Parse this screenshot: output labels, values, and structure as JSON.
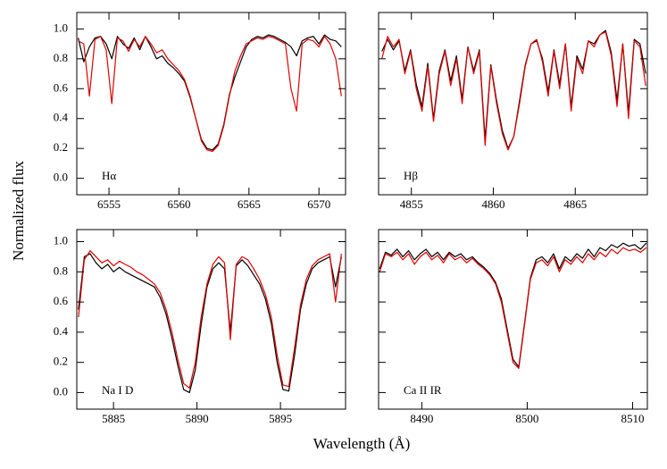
{
  "labels": {
    "x": "Wavelength (Å)",
    "y": "Normalized flux"
  },
  "chart_data": [
    {
      "type": "line",
      "label": "Hα",
      "x": [
        6552.8,
        6553.2,
        6553.6,
        6554.0,
        6554.4,
        6554.8,
        6555.2,
        6555.6,
        6556.0,
        6556.4,
        6556.8,
        6557.2,
        6557.6,
        6558.0,
        6558.4,
        6558.8,
        6559.2,
        6559.6,
        6560.0,
        6560.4,
        6560.8,
        6561.2,
        6561.6,
        6562.0,
        6562.4,
        6562.8,
        6563.2,
        6563.6,
        6564.0,
        6564.4,
        6564.8,
        6565.2,
        6565.6,
        6566.0,
        6566.4,
        6566.8,
        6567.2,
        6567.6,
        6568.0,
        6568.4,
        6568.8,
        6569.2,
        6569.6,
        6570.0,
        6570.4,
        6570.8,
        6571.2,
        6571.6
      ],
      "series": [
        {
          "color": "#000000",
          "values": [
            0.94,
            0.78,
            0.88,
            0.94,
            0.95,
            0.9,
            0.8,
            0.95,
            0.9,
            0.87,
            0.94,
            0.86,
            0.95,
            0.88,
            0.8,
            0.82,
            0.77,
            0.74,
            0.7,
            0.65,
            0.54,
            0.4,
            0.26,
            0.2,
            0.19,
            0.23,
            0.36,
            0.56,
            0.68,
            0.78,
            0.88,
            0.93,
            0.95,
            0.94,
            0.96,
            0.95,
            0.93,
            0.91,
            0.88,
            0.82,
            0.92,
            0.94,
            0.95,
            0.9,
            0.96,
            0.93,
            0.92,
            0.88
          ]
        },
        {
          "color": "#e00000",
          "values": [
            0.92,
            0.9,
            0.55,
            0.93,
            0.95,
            0.86,
            0.5,
            0.94,
            0.92,
            0.85,
            0.93,
            0.88,
            0.95,
            0.9,
            0.84,
            0.86,
            0.8,
            0.76,
            0.72,
            0.66,
            0.55,
            0.4,
            0.25,
            0.19,
            0.18,
            0.22,
            0.35,
            0.55,
            0.72,
            0.82,
            0.9,
            0.92,
            0.94,
            0.93,
            0.95,
            0.94,
            0.92,
            0.9,
            0.6,
            0.45,
            0.9,
            0.93,
            0.92,
            0.88,
            0.95,
            0.9,
            0.8,
            0.55
          ]
        }
      ],
      "xlim": [
        6552.7,
        6571.9
      ],
      "ylim": [
        -0.11,
        1.11
      ],
      "xticks": [
        6555,
        6560,
        6565,
        6570
      ],
      "yticks": [
        {
          "value": 0,
          "label": "0.0"
        },
        0.2,
        0.4,
        0.6,
        0.8,
        {
          "value": 1,
          "label": "1.0"
        }
      ]
    },
    {
      "type": "line",
      "label": "Hβ",
      "x": [
        4853.2,
        4853.55,
        4853.9,
        4854.25,
        4854.6,
        4854.95,
        4855.3,
        4855.65,
        4856.0,
        4856.35,
        4856.7,
        4857.05,
        4857.4,
        4857.75,
        4858.1,
        4858.45,
        4858.8,
        4859.15,
        4859.5,
        4859.85,
        4860.2,
        4860.55,
        4860.9,
        4861.25,
        4861.6,
        4861.95,
        4862.3,
        4862.65,
        4863.0,
        4863.35,
        4863.7,
        4864.05,
        4864.4,
        4864.75,
        4865.1,
        4865.45,
        4865.8,
        4866.15,
        4866.5,
        4866.85,
        4867.2,
        4867.55,
        4867.9,
        4868.25,
        4868.6,
        4868.95,
        4869.3
      ],
      "series": [
        {
          "color": "#000000",
          "values": [
            0.85,
            0.93,
            0.86,
            0.92,
            0.72,
            0.86,
            0.63,
            0.48,
            0.77,
            0.4,
            0.72,
            0.86,
            0.65,
            0.82,
            0.53,
            0.88,
            0.72,
            0.86,
            0.26,
            0.76,
            0.52,
            0.32,
            0.2,
            0.28,
            0.52,
            0.76,
            0.9,
            0.92,
            0.8,
            0.58,
            0.86,
            0.63,
            0.9,
            0.48,
            0.82,
            0.73,
            0.92,
            0.9,
            0.96,
            0.99,
            0.84,
            0.52,
            0.9,
            0.44,
            0.93,
            0.9,
            0.7
          ]
        },
        {
          "color": "#e00000",
          "values": [
            0.8,
            0.95,
            0.88,
            0.93,
            0.7,
            0.85,
            0.6,
            0.45,
            0.75,
            0.38,
            0.7,
            0.85,
            0.62,
            0.8,
            0.5,
            0.88,
            0.7,
            0.85,
            0.22,
            0.75,
            0.5,
            0.3,
            0.19,
            0.28,
            0.5,
            0.75,
            0.9,
            0.93,
            0.78,
            0.55,
            0.85,
            0.6,
            0.9,
            0.45,
            0.8,
            0.7,
            0.92,
            0.88,
            0.96,
            0.98,
            0.82,
            0.48,
            0.9,
            0.4,
            0.92,
            0.88,
            0.62
          ]
        }
      ],
      "xlim": [
        4853.0,
        4869.4
      ],
      "ylim": [
        -0.11,
        1.11
      ],
      "xticks": [
        4855,
        4860,
        4865
      ],
      "yticks": [
        0,
        0.2,
        0.4,
        0.6,
        0.8,
        1
      ]
    },
    {
      "type": "line",
      "label": "Na I D",
      "x": [
        5882.9,
        5883.25,
        5883.6,
        5883.95,
        5884.3,
        5884.65,
        5885.0,
        5885.35,
        5885.7,
        5886.05,
        5886.4,
        5886.75,
        5887.1,
        5887.45,
        5887.8,
        5888.15,
        5888.5,
        5888.85,
        5889.2,
        5889.55,
        5889.9,
        5890.25,
        5890.6,
        5890.95,
        5891.3,
        5891.65,
        5892.0,
        5892.35,
        5892.7,
        5893.05,
        5893.4,
        5893.75,
        5894.1,
        5894.45,
        5894.8,
        5895.15,
        5895.5,
        5895.85,
        5896.2,
        5896.55,
        5896.9,
        5897.25,
        5897.6,
        5897.95,
        5898.3,
        5898.65
      ],
      "series": [
        {
          "color": "#000000",
          "values": [
            0.55,
            0.9,
            0.92,
            0.86,
            0.82,
            0.85,
            0.8,
            0.83,
            0.8,
            0.78,
            0.76,
            0.74,
            0.72,
            0.7,
            0.63,
            0.52,
            0.36,
            0.18,
            0.02,
            0.0,
            0.15,
            0.45,
            0.7,
            0.82,
            0.86,
            0.82,
            0.4,
            0.84,
            0.88,
            0.84,
            0.78,
            0.72,
            0.62,
            0.46,
            0.2,
            0.02,
            0.01,
            0.25,
            0.55,
            0.72,
            0.82,
            0.86,
            0.88,
            0.9,
            0.7,
            0.9
          ]
        },
        {
          "color": "#e00000",
          "values": [
            0.5,
            0.88,
            0.94,
            0.9,
            0.86,
            0.88,
            0.84,
            0.87,
            0.85,
            0.83,
            0.8,
            0.78,
            0.75,
            0.72,
            0.66,
            0.55,
            0.4,
            0.22,
            0.06,
            0.03,
            0.2,
            0.5,
            0.72,
            0.85,
            0.9,
            0.86,
            0.35,
            0.85,
            0.9,
            0.88,
            0.82,
            0.75,
            0.65,
            0.5,
            0.25,
            0.05,
            0.04,
            0.3,
            0.58,
            0.75,
            0.84,
            0.88,
            0.9,
            0.92,
            0.6,
            0.92
          ]
        }
      ],
      "xlim": [
        5882.8,
        5898.9
      ],
      "ylim": [
        -0.11,
        1.08
      ],
      "xticks": [
        5885,
        5890,
        5895
      ],
      "yticks": [
        {
          "value": 0,
          "label": "0.0"
        },
        0.2,
        0.4,
        0.6,
        0.8,
        {
          "value": 1,
          "label": "1.0"
        }
      ]
    },
    {
      "type": "line",
      "label": "Ca II IR",
      "x": [
        8486.0,
        8486.55,
        8487.1,
        8487.65,
        8488.2,
        8488.75,
        8489.3,
        8489.85,
        8490.4,
        8490.95,
        8491.5,
        8492.05,
        8492.6,
        8493.15,
        8493.7,
        8494.25,
        8494.8,
        8495.35,
        8495.9,
        8496.45,
        8497.0,
        8497.55,
        8498.1,
        8498.65,
        8499.2,
        8499.75,
        8500.3,
        8500.85,
        8501.4,
        8501.95,
        8502.5,
        8503.05,
        8503.6,
        8504.15,
        8504.7,
        8505.25,
        8505.8,
        8506.35,
        8506.9,
        8507.45,
        8508.0,
        8508.55,
        8509.1,
        8509.65,
        8510.2,
        8510.75,
        8511.3
      ],
      "series": [
        {
          "color": "#000000",
          "values": [
            0.82,
            0.93,
            0.91,
            0.95,
            0.9,
            0.94,
            0.88,
            0.92,
            0.95,
            0.9,
            0.93,
            0.88,
            0.93,
            0.9,
            0.92,
            0.88,
            0.9,
            0.86,
            0.83,
            0.79,
            0.73,
            0.62,
            0.42,
            0.22,
            0.17,
            0.46,
            0.76,
            0.88,
            0.9,
            0.86,
            0.92,
            0.82,
            0.9,
            0.87,
            0.92,
            0.89,
            0.95,
            0.9,
            0.96,
            0.94,
            0.98,
            0.96,
            0.99,
            0.97,
            0.98,
            0.95,
            0.99
          ]
        },
        {
          "color": "#e00000",
          "values": [
            0.8,
            0.92,
            0.9,
            0.93,
            0.88,
            0.92,
            0.85,
            0.9,
            0.93,
            0.88,
            0.91,
            0.86,
            0.92,
            0.88,
            0.9,
            0.86,
            0.89,
            0.85,
            0.82,
            0.78,
            0.72,
            0.6,
            0.4,
            0.2,
            0.16,
            0.45,
            0.75,
            0.86,
            0.88,
            0.84,
            0.9,
            0.8,
            0.88,
            0.85,
            0.9,
            0.86,
            0.92,
            0.88,
            0.93,
            0.9,
            0.95,
            0.92,
            0.96,
            0.94,
            0.95,
            0.93,
            0.96
          ]
        }
      ],
      "xlim": [
        8485.9,
        8511.4
      ],
      "ylim": [
        -0.11,
        1.08
      ],
      "xticks": [
        8490,
        8500,
        8510
      ],
      "yticks": [
        0,
        0.2,
        0.4,
        0.6,
        0.8,
        1
      ]
    }
  ]
}
